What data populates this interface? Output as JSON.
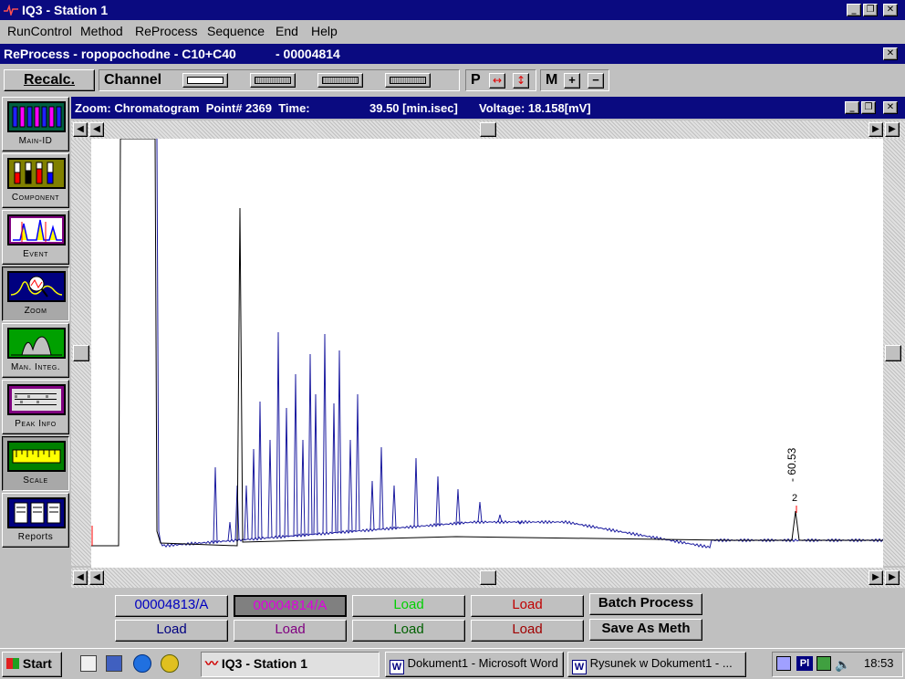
{
  "app_title": "IQ3 - Station 1",
  "menu": [
    "RunControl",
    "Method",
    "ReProcess",
    "Sequence",
    "End",
    "Help"
  ],
  "reprocess_title": "ReProcess - ropopochodne - C10+C40",
  "reprocess_id": "- 00004814",
  "toolbar": {
    "recalc": "Recalc.",
    "channel": "Channel",
    "p": "P",
    "m": "M",
    "plus": "+",
    "minus": "−"
  },
  "sidebar": [
    {
      "label": "Main-ID",
      "icon": "test-tubes-icon"
    },
    {
      "label": "Component",
      "icon": "colored-tubes-icon"
    },
    {
      "label": "Event",
      "icon": "event-peaks-icon"
    },
    {
      "label": "Zoom",
      "icon": "zoom-magnifier-icon"
    },
    {
      "label": "Man. Integ.",
      "icon": "manual-integration-icon"
    },
    {
      "label": "Peak Info",
      "icon": "peak-info-icon"
    },
    {
      "label": "Scale",
      "icon": "ruler-icon"
    },
    {
      "label": "Reports",
      "icon": "reports-icon"
    }
  ],
  "zoom_window": {
    "title": "Zoom: Chromatogram  Point# 2369  Time:",
    "time": "39.50 [min.isec]",
    "voltage": "Voltage: 18.158[mV]"
  },
  "peak_annotation": {
    "time_label": "- 60.53",
    "peak_number": "2"
  },
  "bottom_buttons": {
    "row1": [
      "00004813/A",
      "00004814/A",
      "Load",
      "Load"
    ],
    "row2": [
      "Load",
      "Load",
      "Load",
      "Load"
    ],
    "batch": "Batch Process",
    "save_meth": "Save As Meth"
  },
  "colors": {
    "title_blue": "#0a0a80",
    "trace_blue": "#1c1ca0",
    "trace_black": "#000000",
    "btn_blue": "#0000c0",
    "btn_magenta": "#e000e0",
    "btn_green": "#00d000",
    "btn_red": "#c00000",
    "btn_dark_green": "#006000",
    "btn_purple": "#800080"
  },
  "taskbar": {
    "start": "Start",
    "tasks": [
      "IQ3 - Station 1",
      "Dokument1 - Microsoft Word",
      "Rysunek w Dokument1 - ..."
    ],
    "clock": "18:53",
    "lang": "Pl"
  }
}
